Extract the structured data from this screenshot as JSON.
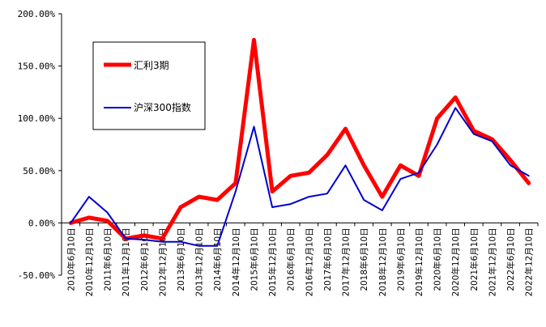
{
  "chart_data": {
    "type": "line",
    "title": "",
    "xlabel": "",
    "ylabel": "",
    "ylim": [
      -50,
      200
    ],
    "y_ticks": [
      "200.00%",
      "150.00%",
      "100.00%",
      "50.00%",
      "0.00%",
      "-50.00%"
    ],
    "y_tick_values": [
      200,
      150,
      100,
      50,
      0,
      -50
    ],
    "x_ticks": [
      "2010年6月10日",
      "2010年12月10日",
      "2011年6月10日",
      "2011年12月10日",
      "2012年6月10日",
      "2012年12月10日",
      "2013年6月10日",
      "2013年12月10日",
      "2014年6月10日",
      "2014年12月10日",
      "2015年6月10日",
      "2015年12月10日",
      "2016年6月10日",
      "2016年12月10日",
      "2017年6月10日",
      "2017年12月10日",
      "2018年6月10日",
      "2018年12月10日",
      "2019年6月10日",
      "2019年12月10日",
      "2020年6月10日",
      "2020年12月10日",
      "2021年6月10日",
      "2021年12月10日",
      "2022年6月10日",
      "2022年12月10日"
    ],
    "x": [
      "2010年6月10日",
      "2010年12月10日",
      "2011年6月10日",
      "2011年12月10日",
      "2012年6月10日",
      "2012年12月10日",
      "2013年6月10日",
      "2013年12月10日",
      "2014年6月10日",
      "2014年12月10日",
      "2015年6月10日",
      "2015年12月10日",
      "2016年6月10日",
      "2016年12月10日",
      "2017年6月10日",
      "2017年12月10日",
      "2018年6月10日",
      "2018年12月10日",
      "2019年6月10日",
      "2019年12月10日",
      "2020年6月10日",
      "2020年12月10日",
      "2021年6月10日",
      "2021年12月10日",
      "2022年6月10日",
      "2022年12月10日"
    ],
    "legend_position": "top-left",
    "series": [
      {
        "name": "汇利3期",
        "color": "#ff0000",
        "values": [
          0,
          5,
          2,
          -15,
          -12,
          -15,
          15,
          25,
          22,
          38,
          175,
          30,
          45,
          48,
          65,
          90,
          55,
          25,
          55,
          45,
          100,
          120,
          88,
          80,
          60,
          38
        ]
      },
      {
        "name": "沪深300指数",
        "color": "#0000cc",
        "values": [
          0,
          25,
          10,
          -15,
          -16,
          -18,
          -18,
          -22,
          -22,
          30,
          92,
          15,
          18,
          25,
          28,
          55,
          22,
          12,
          42,
          48,
          75,
          110,
          85,
          78,
          55,
          45
        ]
      }
    ]
  }
}
